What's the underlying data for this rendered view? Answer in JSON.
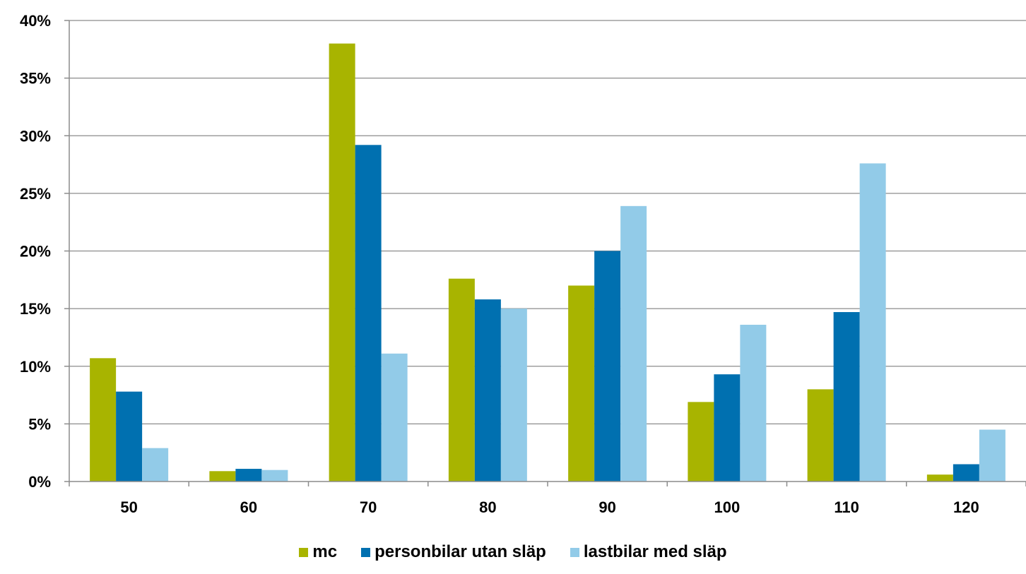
{
  "chart_data": {
    "type": "bar",
    "title": "",
    "xlabel": "",
    "ylabel": "",
    "categories": [
      "50",
      "60",
      "70",
      "80",
      "90",
      "100",
      "110",
      "120"
    ],
    "ylim": [
      0,
      40
    ],
    "yticks": [
      "0%",
      "5%",
      "10%",
      "15%",
      "20%",
      "25%",
      "30%",
      "35%",
      "40%"
    ],
    "grid": true,
    "legend_position": "bottom",
    "series": [
      {
        "name": "mc",
        "color": "#a8b400",
        "values": [
          10.7,
          0.9,
          38.0,
          17.6,
          17.0,
          6.9,
          8.0,
          0.6
        ]
      },
      {
        "name": "personbilar utan släp",
        "color": "#0070b0",
        "values": [
          7.8,
          1.1,
          29.2,
          15.8,
          20.0,
          9.3,
          14.7,
          1.5
        ]
      },
      {
        "name": "lastbilar med släp",
        "color": "#92cbe8",
        "values": [
          2.9,
          1.0,
          11.1,
          15.0,
          23.9,
          13.6,
          27.6,
          4.5
        ]
      }
    ]
  }
}
